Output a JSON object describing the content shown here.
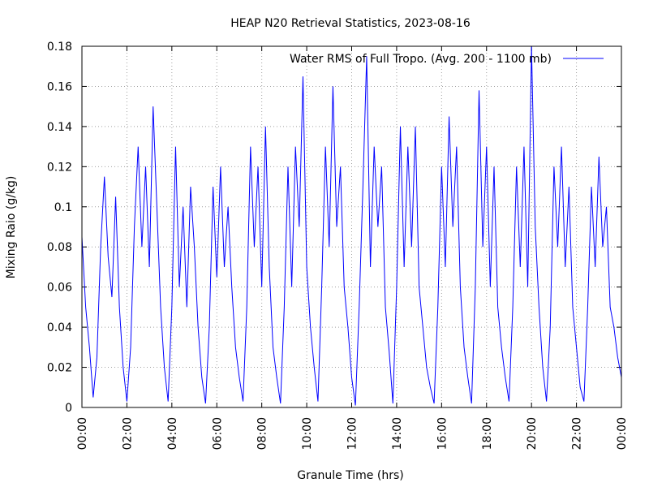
{
  "chart_data": {
    "type": "line",
    "title": "HEAP N20 Retrieval Statistics, 2023-08-16",
    "x_label": "Granule Time (hrs)",
    "y_label": "Mixing Raio (g/kg)",
    "x": [
      0,
      10,
      20,
      30,
      40,
      50,
      60,
      70,
      80,
      90,
      100,
      110,
      120,
      130,
      140,
      150,
      160,
      170,
      180,
      190,
      200,
      210,
      220,
      230,
      240,
      250,
      260,
      270,
      280,
      290,
      300,
      310,
      320,
      330,
      340,
      350,
      360,
      370,
      380,
      390,
      400,
      410,
      420,
      430,
      440,
      450,
      460,
      470,
      480,
      490,
      500,
      510,
      520,
      530,
      540,
      550,
      560,
      570,
      580,
      590,
      600,
      610,
      620,
      630,
      640,
      650,
      660,
      670,
      680,
      690,
      700,
      710,
      720,
      730,
      740,
      750,
      760,
      770,
      780,
      790,
      800,
      810,
      820,
      830,
      840,
      850,
      860,
      870,
      880,
      890,
      900,
      910,
      920,
      930,
      940,
      950,
      960,
      970,
      980,
      990,
      1000,
      1010,
      1020,
      1030,
      1040,
      1050,
      1060,
      1070,
      1080,
      1090,
      1100,
      1110,
      1120,
      1130,
      1140,
      1150,
      1160,
      1170,
      1180,
      1190,
      1200,
      1210,
      1220,
      1230,
      1240,
      1250,
      1260,
      1270,
      1280,
      1290,
      1300,
      1310,
      1320,
      1330,
      1340,
      1350,
      1360,
      1370,
      1380,
      1390,
      1400,
      1410,
      1420,
      1430,
      1440
    ],
    "series": [
      {
        "name": "Water RMS of Full Tropo. (Avg. 200 - 1100 mb)",
        "color": "#0000ff",
        "values": [
          0.085,
          0.05,
          0.03,
          0.005,
          0.025,
          0.08,
          0.115,
          0.075,
          0.055,
          0.105,
          0.05,
          0.02,
          0.003,
          0.03,
          0.09,
          0.13,
          0.08,
          0.12,
          0.07,
          0.15,
          0.1,
          0.05,
          0.02,
          0.003,
          0.05,
          0.13,
          0.06,
          0.1,
          0.05,
          0.11,
          0.08,
          0.04,
          0.015,
          0.002,
          0.04,
          0.11,
          0.065,
          0.12,
          0.07,
          0.1,
          0.06,
          0.03,
          0.015,
          0.003,
          0.05,
          0.13,
          0.08,
          0.12,
          0.06,
          0.14,
          0.07,
          0.03,
          0.015,
          0.002,
          0.05,
          0.12,
          0.06,
          0.13,
          0.09,
          0.165,
          0.07,
          0.04,
          0.02,
          0.003,
          0.06,
          0.13,
          0.08,
          0.16,
          0.09,
          0.12,
          0.06,
          0.04,
          0.015,
          0.001,
          0.05,
          0.11,
          0.175,
          0.07,
          0.13,
          0.09,
          0.12,
          0.05,
          0.028,
          0.002,
          0.06,
          0.14,
          0.07,
          0.13,
          0.08,
          0.14,
          0.06,
          0.04,
          0.02,
          0.01,
          0.002,
          0.05,
          0.12,
          0.07,
          0.145,
          0.09,
          0.13,
          0.06,
          0.03,
          0.015,
          0.002,
          0.06,
          0.158,
          0.08,
          0.13,
          0.06,
          0.12,
          0.05,
          0.03,
          0.015,
          0.003,
          0.05,
          0.12,
          0.07,
          0.13,
          0.06,
          0.18,
          0.09,
          0.05,
          0.02,
          0.003,
          0.04,
          0.12,
          0.08,
          0.13,
          0.07,
          0.11,
          0.05,
          0.03,
          0.01,
          0.003,
          0.05,
          0.11,
          0.07,
          0.125,
          0.08,
          0.1,
          0.05,
          0.04,
          0.025,
          0.015
        ]
      }
    ],
    "xlim": [
      0,
      1440
    ],
    "xticks": [
      {
        "value": 0,
        "label": "00:00"
      },
      {
        "value": 120,
        "label": "02:00"
      },
      {
        "value": 240,
        "label": "04:00"
      },
      {
        "value": 360,
        "label": "06:00"
      },
      {
        "value": 480,
        "label": "08:00"
      },
      {
        "value": 600,
        "label": "10:00"
      },
      {
        "value": 720,
        "label": "12:00"
      },
      {
        "value": 840,
        "label": "14:00"
      },
      {
        "value": 960,
        "label": "16:00"
      },
      {
        "value": 1080,
        "label": "18:00"
      },
      {
        "value": 1200,
        "label": "20:00"
      },
      {
        "value": 1320,
        "label": "22:00"
      },
      {
        "value": 1440,
        "label": "00:00"
      }
    ],
    "ylim": [
      0,
      0.18
    ],
    "yticks": [
      0,
      0.02,
      0.04,
      0.06,
      0.08,
      0.1,
      0.12,
      0.14,
      0.16,
      0.18
    ],
    "grid": true,
    "legend": "top-right"
  }
}
